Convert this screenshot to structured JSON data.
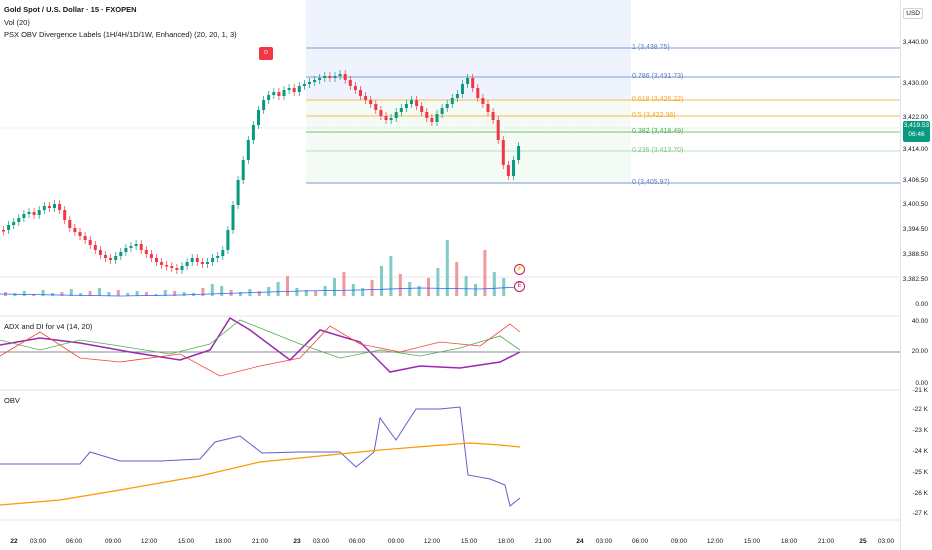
{
  "header": {
    "title": "Gold Spot / U.S. Dollar · 15 · FXOPEN",
    "vol_label": "Vol (20)",
    "indicator_label": "PSX OBV Divergence Labels (1H/4H/1D/1W, Enhanced) (20, 20, 1, 3)",
    "currency": "USD"
  },
  "price_axis": [
    "3,440.00",
    "3,430.00",
    "3,422.00",
    "3,414.00",
    "3,406.50",
    "3,400.50",
    "3,394.50",
    "3,388.50",
    "3,382.50",
    "0.00"
  ],
  "current_price": {
    "value": "3,419.53",
    "countdown": "06:46"
  },
  "fib_levels": [
    {
      "label": "1 (3,438.75)",
      "color": "#5b7fc7"
    },
    {
      "label": "0.786 (3,431.73)",
      "color": "#5b7fc7"
    },
    {
      "label": "0.618 (3,426.22)",
      "color": "#f7a41d"
    },
    {
      "label": "0.5 (3,422.36)",
      "color": "#f7a41d"
    },
    {
      "label": "0.382 (3,418.49)",
      "color": "#4caf50"
    },
    {
      "label": "0.236 (3,413.70)",
      "color": "#81c784"
    },
    {
      "label": "0 (3,405.97)",
      "color": "#5b7fc7"
    }
  ],
  "adx_panel": {
    "label": "ADX and DI for v4 (14, 20)",
    "axis": [
      "40.00",
      "20.00",
      "0.00"
    ]
  },
  "obv_panel": {
    "label": "OBV",
    "axis": [
      "-21 K",
      "-22 K",
      "-23 K",
      "-24 K",
      "-25 K",
      "-26 K",
      "-27 K"
    ]
  },
  "time_axis": [
    "22",
    "03:00",
    "06:00",
    "09:00",
    "12:00",
    "15:00",
    "18:00",
    "21:00",
    "23",
    "03:00",
    "06:00",
    "09:00",
    "12:00",
    "15:00",
    "18:00",
    "21:00",
    "24",
    "03:00",
    "06:00",
    "09:00",
    "12:00",
    "15:00",
    "18:00",
    "21:00",
    "25",
    "03:00"
  ],
  "marker_text": "D",
  "circle_icons": [
    "⚡",
    "E"
  ],
  "colors": {
    "up": "#089981",
    "down": "#f23645",
    "fib_zone": "#e8f0fd",
    "adx": "#9c27b0",
    "obv": "#6a5acd",
    "obv_ma": "#ff9800"
  }
}
